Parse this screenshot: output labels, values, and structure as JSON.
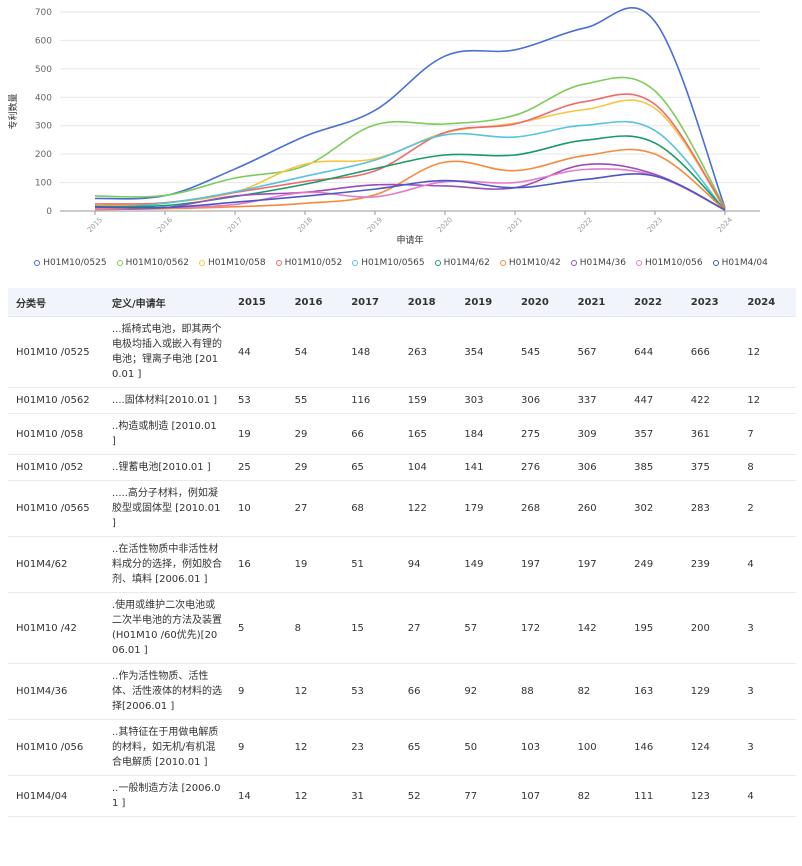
{
  "chart_data": {
    "type": "line",
    "title": "",
    "xlabel": "申请年",
    "ylabel": "专利数量",
    "x": [
      "2015",
      "2016",
      "2017",
      "2018",
      "2019",
      "2020",
      "2021",
      "2022",
      "2023",
      "2024"
    ],
    "ylim": [
      0,
      700
    ],
    "yticks": [
      "0",
      "100",
      "200",
      "300",
      "400",
      "500",
      "600",
      "700"
    ],
    "series": [
      {
        "name": "H01M10/0525",
        "color": "#4a6fd6",
        "values": [
          44,
          54,
          148,
          263,
          354,
          545,
          567,
          644,
          666,
          12
        ]
      },
      {
        "name": "H01M10/0562",
        "color": "#7ccc5b",
        "values": [
          53,
          55,
          116,
          159,
          303,
          306,
          337,
          447,
          422,
          12
        ]
      },
      {
        "name": "H01M10/058",
        "color": "#f7c443",
        "values": [
          19,
          29,
          66,
          165,
          184,
          275,
          309,
          357,
          361,
          7
        ]
      },
      {
        "name": "H01M10/052",
        "color": "#ef6b6b",
        "values": [
          25,
          29,
          65,
          104,
          141,
          276,
          306,
          385,
          375,
          8
        ]
      },
      {
        "name": "H01M10/0565",
        "color": "#55c4de",
        "values": [
          10,
          27,
          68,
          122,
          179,
          268,
          260,
          302,
          283,
          2
        ]
      },
      {
        "name": "H01M4/62",
        "color": "#1a9a68",
        "values": [
          16,
          19,
          51,
          94,
          149,
          197,
          197,
          249,
          239,
          4
        ]
      },
      {
        "name": "H01M10/42",
        "color": "#f58a3c",
        "values": [
          5,
          8,
          15,
          27,
          57,
          172,
          142,
          195,
          200,
          3
        ]
      },
      {
        "name": "H01M4/36",
        "color": "#9b4dbb",
        "values": [
          9,
          12,
          53,
          66,
          92,
          88,
          82,
          163,
          129,
          3
        ]
      },
      {
        "name": "H01M10/056",
        "color": "#e879c9",
        "values": [
          9,
          12,
          23,
          65,
          50,
          103,
          100,
          146,
          124,
          3
        ]
      },
      {
        "name": "H01M4/04",
        "color": "#4a57c6",
        "values": [
          14,
          12,
          31,
          52,
          77,
          107,
          82,
          111,
          123,
          4
        ]
      }
    ]
  },
  "table": {
    "headers": [
      "分类号",
      "定义/申请年",
      "2015",
      "2016",
      "2017",
      "2018",
      "2019",
      "2020",
      "2021",
      "2022",
      "2023",
      "2024"
    ],
    "rows": [
      {
        "code": "H01M10 /0525",
        "def": "...摇椅式电池，即其两个电极均插入或嵌入有锂的电池；锂离子电池 [2010.01 ]",
        "values": [
          "44",
          "54",
          "148",
          "263",
          "354",
          "545",
          "567",
          "644",
          "666",
          "12"
        ]
      },
      {
        "code": "H01M10 /0562",
        "def": "....固体材料[2010.01 ]",
        "values": [
          "53",
          "55",
          "116",
          "159",
          "303",
          "306",
          "337",
          "447",
          "422",
          "12"
        ]
      },
      {
        "code": "H01M10 /058",
        "def": "..构造或制造 [2010.01 ]",
        "values": [
          "19",
          "29",
          "66",
          "165",
          "184",
          "275",
          "309",
          "357",
          "361",
          "7"
        ]
      },
      {
        "code": "H01M10 /052",
        "def": "..锂蓄电池[2010.01 ]",
        "values": [
          "25",
          "29",
          "65",
          "104",
          "141",
          "276",
          "306",
          "385",
          "375",
          "8"
        ]
      },
      {
        "code": "H01M10 /0565",
        "def": ".....高分子材料，例如凝胶型或固体型 [2010.01 ]",
        "values": [
          "10",
          "27",
          "68",
          "122",
          "179",
          "268",
          "260",
          "302",
          "283",
          "2"
        ]
      },
      {
        "code": "H01M4/62",
        "def": "..在活性物质中非活性材料成分的选择，例如胶合剂、填料 [2006.01 ]",
        "values": [
          "16",
          "19",
          "51",
          "94",
          "149",
          "197",
          "197",
          "249",
          "239",
          "4"
        ]
      },
      {
        "code": "H01M10 /42",
        "def": ".使用或维护二次电池或二次半电池的方法及装置(H01M10 /60优先)[2006.01 ]",
        "values": [
          "5",
          "8",
          "15",
          "27",
          "57",
          "172",
          "142",
          "195",
          "200",
          "3"
        ]
      },
      {
        "code": "H01M4/36",
        "def": "..作为活性物质、活性体、活性液体的材料的选择[2006.01 ]",
        "values": [
          "9",
          "12",
          "53",
          "66",
          "92",
          "88",
          "82",
          "163",
          "129",
          "3"
        ]
      },
      {
        "code": "H01M10 /056",
        "def": "..其特征在于用做电解质的材料，如无机/有机混合电解质 [2010.01 ]",
        "values": [
          "9",
          "12",
          "23",
          "65",
          "50",
          "103",
          "100",
          "146",
          "124",
          "3"
        ]
      },
      {
        "code": "H01M4/04",
        "def": "..一般制造方法 [2006.01 ]",
        "values": [
          "14",
          "12",
          "31",
          "52",
          "77",
          "107",
          "82",
          "111",
          "123",
          "4"
        ]
      }
    ]
  }
}
